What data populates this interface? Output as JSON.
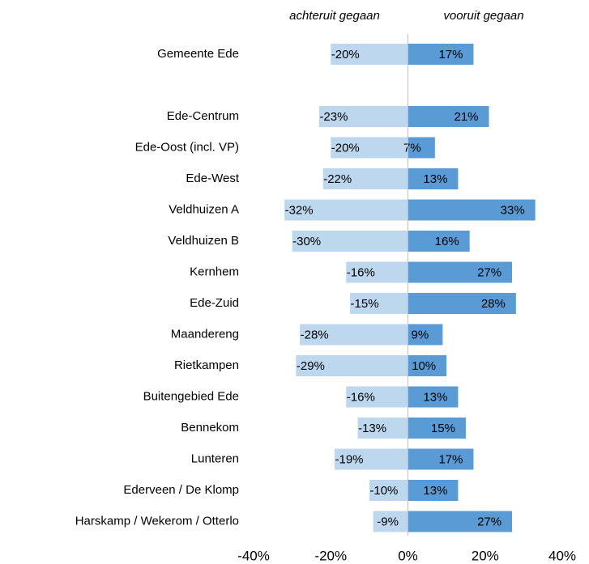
{
  "chart_data": {
    "type": "diverging-bar",
    "categories": [
      "Gemeente Ede",
      null,
      "Ede-Centrum",
      "Ede-Oost (incl. VP)",
      "Ede-West",
      "Veldhuizen A",
      "Veldhuizen B",
      "Kernhem",
      "Ede-Zuid",
      "Maandereng",
      "Rietkampen",
      "Buitengebied Ede",
      "Bennekom",
      "Lunteren",
      "Ederveen / De Klomp",
      "Harskamp / Wekerom / Otterlo"
    ],
    "series": [
      {
        "name": "achteruit gegaan",
        "color": "#bdd7ee",
        "values": [
          -20,
          null,
          -23,
          -20,
          -22,
          -32,
          -30,
          -16,
          -15,
          -28,
          -29,
          -16,
          -13,
          -19,
          -10,
          -9
        ],
        "value_labels": [
          "-20%",
          null,
          "-23%",
          "-20%",
          "-22%",
          "-32%",
          "-30%",
          "-16%",
          "-15%",
          "-28%",
          "-29%",
          "-16%",
          "-13%",
          "-19%",
          "-10%",
          "-9%"
        ]
      },
      {
        "name": "vooruit gegaan",
        "color": "#5b9bd5",
        "values": [
          17,
          null,
          21,
          7,
          13,
          33,
          16,
          27,
          28,
          9,
          10,
          13,
          15,
          17,
          13,
          27
        ],
        "value_labels": [
          "17%",
          null,
          "21%",
          "7%",
          "13%",
          "33%",
          "16%",
          "27%",
          "28%",
          "9%",
          "10%",
          "13%",
          "15%",
          "17%",
          "13%",
          "27%"
        ]
      }
    ],
    "xlim": [
      -40,
      40
    ],
    "xticks": [
      {
        "value": -40,
        "label": "-40%"
      },
      {
        "value": -20,
        "label": "-20%"
      },
      {
        "value": 0,
        "label": "0%"
      },
      {
        "value": 20,
        "label": "20%"
      },
      {
        "value": 40,
        "label": "40%"
      }
    ]
  }
}
